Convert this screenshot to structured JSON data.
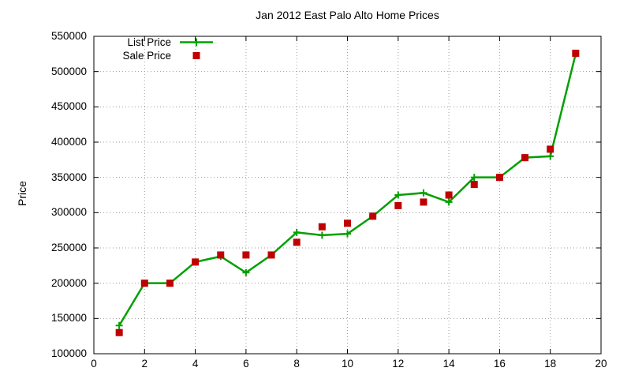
{
  "chart_data": {
    "type": "line",
    "title": "Jan 2012 East Palo Alto Home Prices",
    "ylabel": "Price",
    "xlabel": "",
    "xlim": [
      0,
      20
    ],
    "ylim": [
      100000,
      550000
    ],
    "x_ticks": [
      0,
      2,
      4,
      6,
      8,
      10,
      12,
      14,
      16,
      18,
      20
    ],
    "y_ticks": [
      100000,
      150000,
      200000,
      250000,
      300000,
      350000,
      400000,
      450000,
      500000,
      550000
    ],
    "grid": true,
    "legend_position": "top-left",
    "x": [
      1,
      2,
      3,
      4,
      5,
      6,
      7,
      8,
      9,
      10,
      11,
      12,
      13,
      14,
      15,
      16,
      17,
      18,
      19
    ],
    "series": [
      {
        "name": "List Price",
        "style": "linespoints",
        "marker": "plus",
        "color": "#00a000",
        "values": [
          140000,
          200000,
          200000,
          230000,
          238000,
          215000,
          240000,
          272000,
          268000,
          270000,
          295000,
          325000,
          328000,
          315000,
          350000,
          350000,
          378000,
          380000,
          525000
        ]
      },
      {
        "name": "Sale Price",
        "style": "points",
        "marker": "square",
        "color": "#c00000",
        "values": [
          130000,
          200000,
          200000,
          230000,
          240000,
          240000,
          240000,
          258000,
          280000,
          285000,
          295000,
          310000,
          315000,
          325000,
          340000,
          350000,
          378000,
          390000,
          526000
        ]
      }
    ]
  },
  "colors": {
    "background": "#ffffff",
    "text": "#000000",
    "axis": "#000000",
    "grid": "#9c9c9c",
    "list_price": "#00a000",
    "sale_price": "#c00000"
  }
}
